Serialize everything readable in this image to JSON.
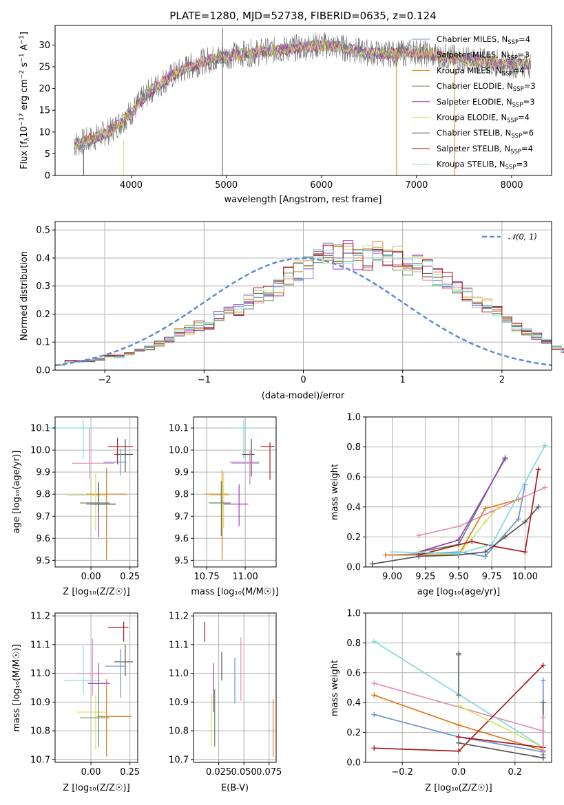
{
  "colors": {
    "Chabrier MILES": "#6b8fd6",
    "Salpeter MILES": "#e58fb8",
    "Kroupa MILES": "#e07b1e",
    "Chabrier ELODIE": "#5e8a5a",
    "Salpeter ELODIE": "#9b3bbf",
    "Kroupa ELODIE": "#d8e06a",
    "Chabrier STELIB": "#555555",
    "Salpeter STELIB": "#aa1c1c",
    "Kroupa STELIB": "#7fdada",
    "gaussian": "#5b8ad6"
  },
  "spectrum": {
    "title": "PLATE=1280, MJD=52738, FIBERID=0635, z=0.124",
    "xlabel": "wavelength [Angstrom, rest frame]",
    "ylabel": "Flux [f",
    "ylabel_sub": "λ",
    "ylabel_mid": "10",
    "ylabel_sup": "−17",
    "ylabel_tail": " erg cm",
    "ylabel_sup2": "−2",
    "ylabel_tail2": " s",
    "ylabel_sup3": "−1",
    "ylabel_tail3": " A",
    "ylabel_sup4": "−1",
    "ylabel_end": "]",
    "xticks": [
      "4000",
      "5000",
      "6000",
      "7000",
      "8000"
    ],
    "yticks": [
      "0",
      "5",
      "10",
      "15",
      "20",
      "25",
      "30"
    ],
    "legend": [
      {
        "name": "Chabrier MILES",
        "nssp": "4"
      },
      {
        "name": "Salpeter MILES",
        "nssp": "3"
      },
      {
        "name": "Kroupa MILES",
        "nssp": "4"
      },
      {
        "name": "Chabrier ELODIE",
        "nssp": "3"
      },
      {
        "name": "Salpeter ELODIE",
        "nssp": "3"
      },
      {
        "name": "Kroupa ELODIE",
        "nssp": "4"
      },
      {
        "name": "Chabrier STELIB",
        "nssp": "6"
      },
      {
        "name": "Salpeter STELIB",
        "nssp": "4"
      },
      {
        "name": "Kroupa STELIB",
        "nssp": "3"
      }
    ],
    "nssp_prefix": "N",
    "nssp_sub": "SSP",
    "nssp_eq": "="
  },
  "residuals": {
    "xlabel": "(data-model)/error",
    "ylabel": "Normed distribution",
    "xticks": [
      "−2",
      "−1",
      "0",
      "1",
      "2"
    ],
    "yticks": [
      "0.0",
      "0.1",
      "0.2",
      "0.3",
      "0.4",
      "0.5"
    ],
    "legend_label": "𝒩(0, 1)"
  },
  "agez": {
    "xlabel": "Z [log₁₀(Z/Z☉)]",
    "ylabel": "age  [log₁₀(age/yr)]",
    "xticks": [
      "0.00",
      "0.25"
    ],
    "yticks": [
      "9.5",
      "9.6",
      "9.7",
      "9.8",
      "9.9",
      "10.0",
      "10.1"
    ]
  },
  "agemass": {
    "xlabel": "mass [log₁₀(M/M☉)]",
    "xticks": [
      "10.75",
      "11.00"
    ],
    "yticks": [
      "9.5",
      "9.6",
      "9.7",
      "9.8",
      "9.9",
      "10.0",
      "10.1"
    ]
  },
  "mwage": {
    "xlabel": "age  [log₁₀(age/yr)]",
    "ylabel": "mass weight",
    "xticks": [
      "9.00",
      "9.25",
      "9.50",
      "9.75",
      "10.00"
    ],
    "yticks": [
      "0.0",
      "0.2",
      "0.4",
      "0.6",
      "0.8",
      "1.0"
    ]
  },
  "massz": {
    "xlabel": "Z [log₁₀(Z/Z☉)]",
    "ylabel": "mass [log₁₀(M/M☉)]",
    "xticks": [
      "0.00",
      "0.25"
    ],
    "yticks": [
      "10.7",
      "10.8",
      "10.9",
      "11.0",
      "11.1",
      "11.2"
    ]
  },
  "massebv": {
    "xlabel": "E(B-V)",
    "xticks": [
      "0.025",
      "0.050",
      "0.075"
    ],
    "yticks": [
      "10.7",
      "10.8",
      "10.9",
      "11.0",
      "11.1",
      "11.2"
    ]
  },
  "mwz": {
    "xlabel": "Z [log₁₀(Z/Z☉)]",
    "ylabel": "mass weight",
    "xticks": [
      "−0.2",
      "0.0",
      "0.2"
    ],
    "yticks": [
      "0.0",
      "0.2",
      "0.4",
      "0.6",
      "0.8",
      "1.0"
    ]
  },
  "chart_data": [
    {
      "type": "line",
      "panel": "spectrum",
      "xlim": [
        3200,
        8420
      ],
      "ylim": [
        0,
        34.5
      ],
      "continuum": {
        "x": [
          3400,
          3600,
          3800,
          4000,
          4200,
          4400,
          4600,
          4800,
          5000,
          5200,
          5400,
          5600,
          5800,
          6000,
          6200,
          6400,
          6600,
          6800,
          7000,
          7200,
          7400,
          7600,
          7800,
          8000,
          8200
        ],
        "y": [
          7.0,
          8.5,
          10.5,
          14.5,
          19.5,
          22.5,
          25.0,
          26.5,
          27.5,
          28.0,
          28.5,
          29.0,
          29.5,
          30.0,
          29.5,
          28.5,
          28.0,
          28.0,
          28.5,
          27.5,
          27.0,
          26.5,
          26.0,
          25.5,
          25.5
        ]
      },
      "spikes": [
        {
          "x": 3500,
          "y0": 0,
          "y1": 6
        },
        {
          "x": 3920,
          "y0": 0,
          "y1": 8
        },
        {
          "x": 4960,
          "y0": 0,
          "y1": 34
        },
        {
          "x": 6790,
          "y0": 0,
          "y1": 28
        },
        {
          "x": 7400,
          "y0": 0,
          "y1": 28
        }
      ]
    },
    {
      "type": "bar",
      "panel": "residuals",
      "xlim": [
        -2.5,
        2.5
      ],
      "ylim": [
        0,
        0.53
      ],
      "bin_width": 0.1,
      "histogram": [
        0.018,
        0.032,
        0.031,
        0.033,
        0.04,
        0.052,
        0.05,
        0.058,
        0.07,
        0.078,
        0.095,
        0.11,
        0.135,
        0.145,
        0.158,
        0.162,
        0.19,
        0.215,
        0.215,
        0.245,
        0.265,
        0.27,
        0.295,
        0.335,
        0.355,
        0.365,
        0.39,
        0.41,
        0.405,
        0.42,
        0.395,
        0.4,
        0.42,
        0.41,
        0.4,
        0.375,
        0.37,
        0.36,
        0.33,
        0.315,
        0.29,
        0.265,
        0.245,
        0.23,
        0.205,
        0.175,
        0.155,
        0.14,
        0.12,
        0.1,
        0.082,
        0.07,
        0.06,
        0.05,
        0.045,
        0.04,
        0.035,
        0.03,
        0.025,
        0.022
      ],
      "gaussian": {
        "mean": 0,
        "sigma": 1
      }
    },
    {
      "type": "scatter",
      "panel": "age_vs_Z",
      "xlim": [
        -0.23,
        0.3
      ],
      "ylim": [
        9.47,
        10.15
      ],
      "points": [
        {
          "model": "Kroupa STELIB",
          "x": -0.05,
          "xerr": [
            0.23,
            0.06
          ],
          "y": 10.1,
          "yerr": [
            0.14,
            0.04
          ]
        },
        {
          "model": "Salpeter STELIB",
          "x": 0.17,
          "xerr": [
            0.06,
            0.1
          ],
          "y": 10.015,
          "yerr": [
            0.08,
            0.04
          ]
        },
        {
          "model": "Chabrier STELIB",
          "x": 0.22,
          "xerr": [
            0.07,
            0.05
          ],
          "y": 9.98,
          "yerr": [
            0.08,
            0.07
          ]
        },
        {
          "model": "Chabrier MILES",
          "x": 0.19,
          "xerr": [
            0.11,
            0.04
          ],
          "y": 9.945,
          "yerr": [
            0.06,
            0.06
          ]
        },
        {
          "model": "Salpeter MILES",
          "x": -0.01,
          "xerr": [
            0.11,
            0.16
          ],
          "y": 9.94,
          "yerr": [
            0.07,
            0.16
          ]
        },
        {
          "model": "Kroupa MILES",
          "x": 0.1,
          "xerr": [
            0.13,
            0.13
          ],
          "y": 9.8,
          "yerr": [
            0.3,
            0.12
          ]
        },
        {
          "model": "Kroupa ELODIE",
          "x": 0.03,
          "xerr": [
            0.18,
            0.06
          ],
          "y": 9.795,
          "yerr": [
            0.16,
            0.1
          ]
        },
        {
          "model": "Chabrier ELODIE",
          "x": 0.05,
          "xerr": [
            0.12,
            0.07
          ],
          "y": 9.76,
          "yerr": [
            0.12,
            0.08
          ]
        },
        {
          "model": "Salpeter ELODIE",
          "x": 0.05,
          "xerr": [
            0.08,
            0.1
          ],
          "y": 9.755,
          "yerr": [
            0.15,
            0.09
          ]
        },
        {
          "model": "Chabrier STELIB",
          "x": 0.05,
          "xerr": [
            0.04,
            0.11
          ],
          "y": 9.755,
          "yerr": [
            0.04,
            0.1
          ]
        }
      ]
    },
    {
      "type": "scatter",
      "panel": "age_vs_mass",
      "xlim": [
        10.665,
        11.2
      ],
      "ylim": [
        9.47,
        10.15
      ],
      "points": [
        {
          "model": "Kroupa STELIB",
          "x": 10.99,
          "xerr": [
            0.07,
            0.07
          ],
          "y": 10.1,
          "yerr": [
            0.14,
            0.04
          ]
        },
        {
          "model": "Salpeter STELIB",
          "x": 11.16,
          "xerr": [
            0.06,
            0.03
          ],
          "y": 10.015,
          "yerr": [
            0.15,
            0.02
          ]
        },
        {
          "model": "Chabrier STELIB",
          "x": 11.04,
          "xerr": [
            0.06,
            0.02
          ],
          "y": 9.98,
          "yerr": [
            0.1,
            0.07
          ]
        },
        {
          "model": "Chabrier MILES",
          "x": 11.03,
          "xerr": [
            0.13,
            0.06
          ],
          "y": 9.945,
          "yerr": [
            0.1,
            0.05
          ]
        },
        {
          "model": "Salpeter MILES",
          "x": 11.03,
          "xerr": [
            0.12,
            0.06
          ],
          "y": 9.94,
          "yerr": [
            0.08,
            0.05
          ]
        },
        {
          "model": "Kroupa MILES",
          "x": 10.85,
          "xerr": [
            0.11,
            0.04
          ],
          "y": 9.8,
          "yerr": [
            0.3,
            0.11
          ]
        },
        {
          "model": "Kroupa ELODIE",
          "x": 10.86,
          "xerr": [
            0.09,
            0.04
          ],
          "y": 9.795,
          "yerr": [
            0.15,
            0.1
          ]
        },
        {
          "model": "Chabrier ELODIE",
          "x": 10.845,
          "xerr": [
            0.08,
            0.06
          ],
          "y": 9.76,
          "yerr": [
            0.15,
            0.1
          ]
        },
        {
          "model": "Salpeter ELODIE",
          "x": 10.96,
          "xerr": [
            0.1,
            0.06
          ],
          "y": 9.755,
          "yerr": [
            0.1,
            0.09
          ]
        }
      ]
    },
    {
      "type": "line",
      "panel": "mass_weight_vs_age",
      "xlim": [
        8.8,
        10.2
      ],
      "ylim": [
        0,
        1
      ],
      "series": [
        {
          "model": "Chabrier MILES",
          "x": [
            9.0,
            9.5,
            9.7,
            9.95,
            10.0
          ],
          "y": [
            0.08,
            0.1,
            0.07,
            0.32,
            0.55
          ]
        },
        {
          "model": "Salpeter MILES",
          "x": [
            9.2,
            9.5,
            9.75,
            10.15
          ],
          "y": [
            0.21,
            0.27,
            0.37,
            0.53
          ]
        },
        {
          "model": "Kroupa MILES",
          "x": [
            8.95,
            9.5,
            9.7,
            9.95
          ],
          "y": [
            0.08,
            0.08,
            0.39,
            0.45
          ]
        },
        {
          "model": "Chabrier ELODIE",
          "x": [
            9.2,
            9.5,
            9.85
          ],
          "y": [
            0.1,
            0.15,
            0.73
          ]
        },
        {
          "model": "Salpeter ELODIE",
          "x": [
            9.2,
            9.5,
            9.85
          ],
          "y": [
            0.1,
            0.18,
            0.72
          ]
        },
        {
          "model": "Kroupa ELODIE",
          "x": [
            9.2,
            9.5,
            9.7,
            9.8
          ],
          "y": [
            0.1,
            0.08,
            0.3,
            0.4
          ]
        },
        {
          "model": "Chabrier STELIB",
          "x": [
            8.85,
            9.2,
            9.5,
            9.7,
            9.85,
            10.0,
            10.1
          ],
          "y": [
            0.02,
            0.07,
            0.08,
            0.1,
            0.2,
            0.3,
            0.4
          ]
        },
        {
          "model": "Salpeter STELIB",
          "x": [
            9.2,
            9.6,
            9.75,
            10.0,
            10.1
          ],
          "y": [
            0.08,
            0.17,
            0.14,
            0.1,
            0.65
          ]
        },
        {
          "model": "Kroupa STELIB",
          "x": [
            9.0,
            9.5,
            9.75,
            10.15
          ],
          "y": [
            0.1,
            0.09,
            0.15,
            0.81
          ]
        }
      ]
    },
    {
      "type": "scatter",
      "panel": "mass_vs_Z",
      "xlim": [
        -0.23,
        0.3
      ],
      "ylim": [
        10.69,
        11.21
      ],
      "points": [
        {
          "model": "Salpeter STELIB",
          "x": 0.21,
          "xerr": [
            0.1,
            0.03
          ],
          "y": 11.16,
          "yerr": [
            0.05,
            0.02
          ]
        },
        {
          "model": "Salpeter MILES",
          "x": 0.01,
          "xerr": [
            0.09,
            0.08
          ],
          "y": 11.0,
          "yerr": [
            0.08,
            0.12
          ]
        },
        {
          "model": "Chabrier STELIB",
          "x": 0.22,
          "xerr": [
            0.07,
            0.05
          ],
          "y": 11.04,
          "yerr": [
            0.05,
            0.06
          ]
        },
        {
          "model": "Chabrier MILES",
          "x": 0.19,
          "xerr": [
            0.1,
            0.03
          ],
          "y": 11.025,
          "yerr": [
            0.11,
            0.06
          ]
        },
        {
          "model": "Kroupa STELIB",
          "x": -0.05,
          "xerr": [
            0.12,
            0.11
          ],
          "y": 10.975,
          "yerr": [
            0.05,
            0.12
          ]
        },
        {
          "model": "Salpeter ELODIE",
          "x": 0.05,
          "xerr": [
            0.07,
            0.07
          ],
          "y": 10.965,
          "yerr": [
            0.07,
            0.07
          ]
        },
        {
          "model": "Kroupa ELODIE",
          "x": 0.03,
          "xerr": [
            0.12,
            0.07
          ],
          "y": 10.865,
          "yerr": [
            0.13,
            0.06
          ]
        },
        {
          "model": "Kroupa MILES",
          "x": 0.1,
          "xerr": [
            0.06,
            0.16
          ],
          "y": 10.85,
          "yerr": [
            0.14,
            0.13
          ]
        },
        {
          "model": "Chabrier ELODIE",
          "x": 0.05,
          "xerr": [
            0.12,
            0.07
          ],
          "y": 10.845,
          "yerr": [
            0.1,
            0.14
          ]
        }
      ]
    },
    {
      "type": "scatter",
      "panel": "mass_vs_EBV",
      "xlim": [
        0.0,
        0.082
      ],
      "ylim": [
        10.69,
        11.21
      ],
      "points": [
        {
          "model": "Salpeter STELIB",
          "x": 0.011,
          "y": 11.16,
          "yerr": [
            0.05,
            0.02
          ]
        },
        {
          "model": "Salpeter ELODIE",
          "x": 0.02,
          "y": 10.965,
          "yerr": [
            0.1,
            0.07
          ]
        },
        {
          "model": "Kroupa ELODIE",
          "x": 0.018,
          "y": 10.865,
          "yerr": [
            0.12,
            0.06
          ]
        },
        {
          "model": "Chabrier ELODIE",
          "x": 0.021,
          "y": 10.845,
          "yerr": [
            0.1,
            0.1
          ]
        },
        {
          "model": "Chabrier STELIB",
          "x": 0.028,
          "y": 11.025,
          "yerr": [
            0.05,
            0.05
          ]
        },
        {
          "model": "Chabrier MILES",
          "x": 0.041,
          "y": 10.975,
          "yerr": [
            0.08,
            0.08
          ]
        },
        {
          "model": "Salpeter MILES",
          "x": 0.047,
          "y": 11.025,
          "yerr": [
            0.12,
            0.1
          ]
        },
        {
          "model": "Kroupa MILES",
          "x": 0.079,
          "y": 10.8,
          "yerr": [
            0.09,
            0.11
          ]
        }
      ]
    },
    {
      "type": "line",
      "panel": "mass_weight_vs_Z",
      "xlim": [
        -0.33,
        0.33
      ],
      "ylim": [
        0,
        1
      ],
      "series": [
        {
          "model": "Kroupa STELIB",
          "x": [
            -0.3,
            0.3
          ],
          "y": [
            0.81,
            0.1
          ]
        },
        {
          "model": "Salpeter MILES",
          "x": [
            -0.3,
            0.3
          ],
          "y": [
            0.53,
            0.21
          ]
        },
        {
          "model": "Kroupa MILES",
          "x": [
            -0.3,
            0.0,
            0.3
          ],
          "y": [
            0.45,
            0.25,
            0.08
          ]
        },
        {
          "model": "Chabrier MILES",
          "x": [
            -0.3,
            0.0,
            0.3
          ],
          "y": [
            0.32,
            0.17,
            0.07
          ]
        },
        {
          "model": "Salpeter STELIB",
          "x": [
            -0.3,
            0.0,
            0.3
          ],
          "y": [
            0.095,
            0.075,
            0.65
          ]
        },
        {
          "model": "Chabrier STELIB",
          "x": [
            0.0,
            0.3
          ],
          "y": [
            0.13,
            0.03
          ]
        },
        {
          "model": "Kroupa ELODIE",
          "x": [
            0.0,
            0.3
          ],
          "y": [
            0.38,
            0.1
          ]
        },
        {
          "model": "Salpeter STELIB",
          "x": [
            0.0,
            0.3
          ],
          "y": [
            0.17,
            0.1
          ]
        }
      ],
      "vertical": [
        {
          "model": "Salpeter ELODIE",
          "x": 0.0,
          "y": [
            0.45,
            0.73
          ]
        },
        {
          "model": "Chabrier ELODIE",
          "x": 0.0,
          "y": [
            0.45,
            0.72
          ]
        },
        {
          "model": "Chabrier MILES",
          "x": 0.3,
          "y": [
            0.05,
            0.55
          ]
        },
        {
          "model": "Chabrier STELIB",
          "x": 0.3,
          "y": [
            0.03,
            0.4
          ]
        },
        {
          "model": "Salpeter MILES",
          "x": 0.3,
          "y": [
            0.08,
            0.3
          ]
        }
      ]
    }
  ]
}
